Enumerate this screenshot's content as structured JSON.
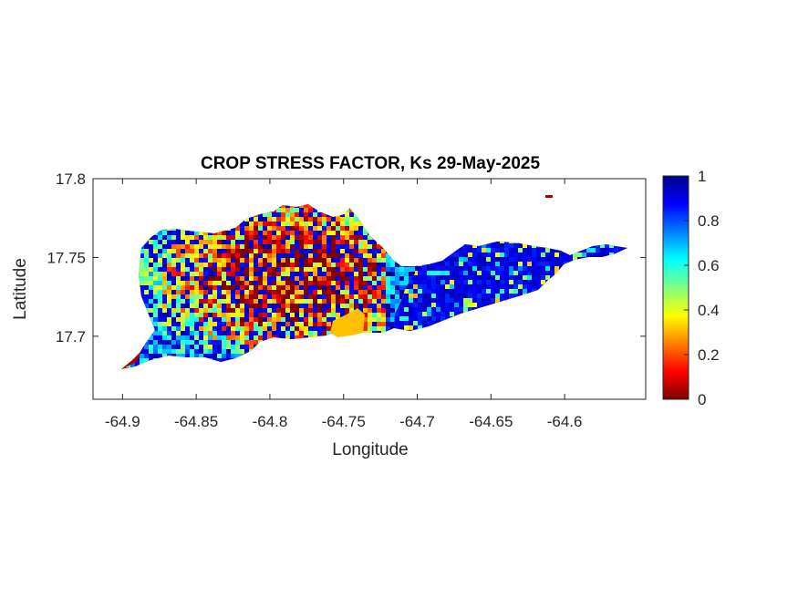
{
  "figure": {
    "title": "CROP STRESS FACTOR, Ks  29-May-2025"
  },
  "map": {
    "xlabel": "Longitude",
    "ylabel": "Latitude",
    "xlim": [
      -64.92,
      -64.545
    ],
    "ylim": [
      17.66,
      17.8
    ],
    "xticks": [
      -64.9,
      -64.85,
      -64.8,
      -64.75,
      -64.7,
      -64.65,
      -64.6
    ],
    "xtick_labels": [
      "-64.9",
      "-64.85",
      "-64.8",
      "-64.75",
      "-64.7",
      "-64.65",
      "-64.6"
    ],
    "yticks": [
      17.7,
      17.75,
      17.8
    ],
    "ytick_labels": [
      "17.7",
      "17.75",
      "17.8"
    ],
    "region": "St. Croix island outline with Ks field"
  },
  "colorbar": {
    "colormap": "jet",
    "range": [
      0,
      1
    ],
    "ticks": [
      0,
      0.2,
      0.4,
      0.6,
      0.8,
      1
    ],
    "tick_labels": [
      "0",
      "0.2",
      "0.4",
      "0.6",
      "0.8",
      "1"
    ]
  },
  "colors": {
    "axis": "#262626",
    "background": "#ffffff"
  }
}
